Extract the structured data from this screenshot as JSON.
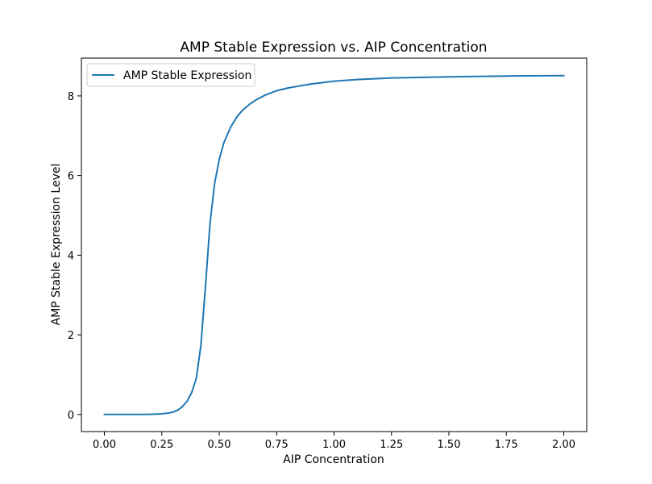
{
  "chart_data": {
    "type": "line",
    "title": "AMP Stable Expression vs. AIP Concentration",
    "xlabel": "AIP Concentration",
    "ylabel": "AMP Stable Expression Level",
    "xlim": [
      -0.1,
      2.1
    ],
    "ylim": [
      -0.43,
      8.95
    ],
    "xticks": [
      0.0,
      0.25,
      0.5,
      0.75,
      1.0,
      1.25,
      1.5,
      1.75,
      2.0
    ],
    "xtick_labels": [
      "0.00",
      "0.25",
      "0.50",
      "0.75",
      "1.00",
      "1.25",
      "1.50",
      "1.75",
      "2.00"
    ],
    "yticks": [
      0,
      2,
      4,
      6,
      8
    ],
    "ytick_labels": [
      "0",
      "2",
      "4",
      "6",
      "8"
    ],
    "grid": false,
    "legend_position": "upper-left",
    "series": [
      {
        "name": "AMP Stable Expression",
        "color": "#1f77b4",
        "x": [
          0.0,
          0.05,
          0.1,
          0.15,
          0.2,
          0.25,
          0.28,
          0.3,
          0.32,
          0.34,
          0.36,
          0.38,
          0.4,
          0.42,
          0.44,
          0.46,
          0.48,
          0.5,
          0.52,
          0.55,
          0.58,
          0.6,
          0.63,
          0.66,
          0.7,
          0.75,
          0.8,
          0.9,
          1.0,
          1.1,
          1.25,
          1.5,
          1.75,
          2.0
        ],
        "y": [
          0.0,
          0.0,
          0.0,
          0.0,
          0.003,
          0.015,
          0.035,
          0.06,
          0.11,
          0.2,
          0.33,
          0.55,
          0.9,
          1.72,
          3.2,
          4.8,
          5.8,
          6.4,
          6.82,
          7.22,
          7.5,
          7.63,
          7.78,
          7.9,
          8.02,
          8.13,
          8.2,
          8.3,
          8.37,
          8.41,
          8.45,
          8.48,
          8.5,
          8.51
        ]
      }
    ]
  }
}
